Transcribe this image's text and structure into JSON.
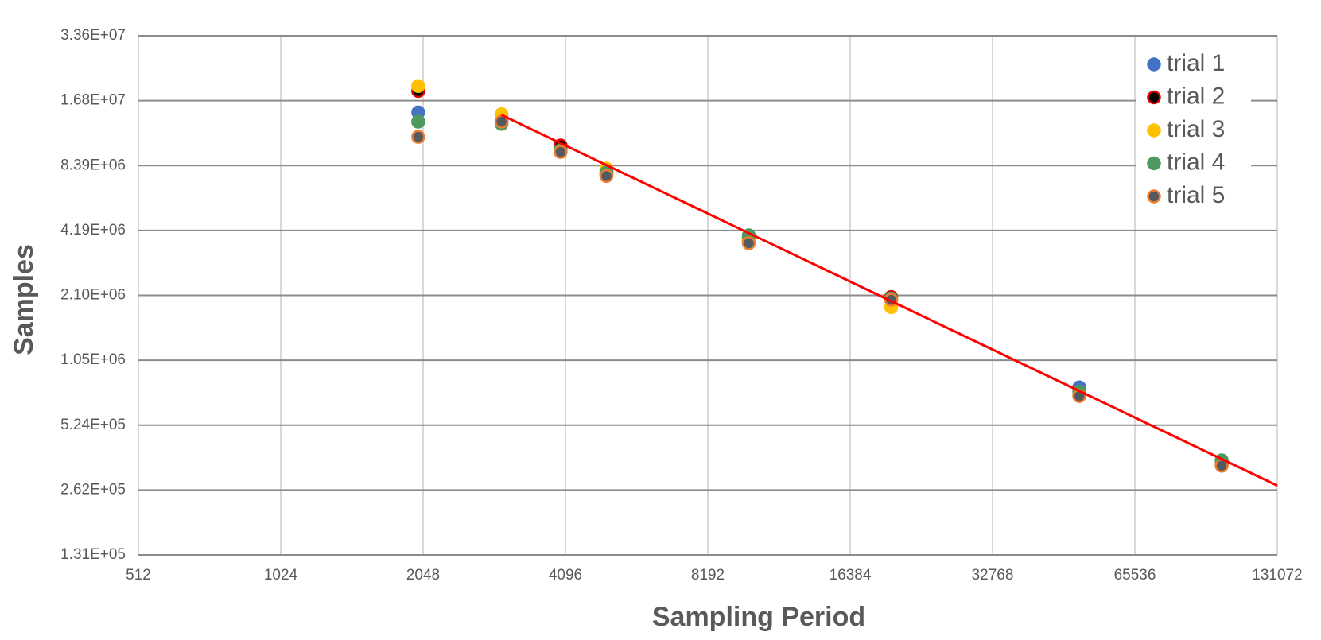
{
  "chart_data": {
    "type": "scatter",
    "xlabel": "Sampling Period",
    "ylabel": "Samples",
    "xscale": "log",
    "yscale": "log",
    "grid": true,
    "legend_loc": "upper right",
    "xlim": [
      512,
      131072
    ],
    "xticks": [
      512,
      1024,
      2048,
      4096,
      8192,
      16384,
      32768,
      65536,
      131072
    ],
    "ylim": [
      131072,
      33554432
    ],
    "yticks": [
      {
        "value": 131072,
        "label": "1.31E+05"
      },
      {
        "value": 262144,
        "label": "2.62E+05"
      },
      {
        "value": 524288,
        "label": "5.24E+05"
      },
      {
        "value": 1048576,
        "label": "1.05E+06"
      },
      {
        "value": 2097152,
        "label": "2.10E+06"
      },
      {
        "value": 4194304,
        "label": "4.19E+06"
      },
      {
        "value": 8388608,
        "label": "8.39E+06"
      },
      {
        "value": 16777216,
        "label": "1.68E+07"
      },
      {
        "value": 33554432,
        "label": "3.36E+07"
      }
    ],
    "x": [
      2000,
      3000,
      4000,
      5000,
      10000,
      20000,
      50000,
      100000
    ],
    "series": [
      {
        "name": "trial 1",
        "color": "#4472c4",
        "edgecolor": "#4472c4",
        "values": [
          14800000,
          14400000,
          10100000,
          7900000,
          3850000,
          2000000,
          785000,
          350000
        ]
      },
      {
        "name": "trial 2",
        "color": "#000000",
        "edgecolor": "#e00000",
        "values": [
          18600000,
          13400000,
          10400000,
          7600000,
          3780000,
          2060000,
          720000,
          345000
        ]
      },
      {
        "name": "trial 3",
        "color": "#ffc000",
        "edgecolor": "#ffc000",
        "values": [
          19600000,
          14500000,
          9700000,
          8120000,
          3780000,
          1850000,
          720000,
          345000
        ]
      },
      {
        "name": "trial 4",
        "color": "#4e9a5e",
        "edgecolor": "#4e9a5e",
        "values": [
          13400000,
          13100000,
          9900000,
          7800000,
          3980000,
          2030000,
          750000,
          360000
        ]
      },
      {
        "name": "trial 5",
        "color": "#555a60",
        "edgecolor": "#ed7d31",
        "values": [
          11400000,
          13400000,
          9700000,
          7500000,
          3660000,
          2000000,
          715000,
          340000
        ]
      }
    ],
    "trendline": {
      "color": "#ff0000",
      "x": [
        3000,
        131072
      ],
      "values": [
        14400000,
        275000
      ]
    }
  }
}
